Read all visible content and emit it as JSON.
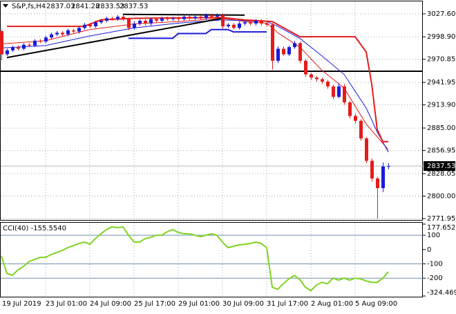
{
  "chart_data": [
    {
      "type": "candlestick",
      "symbol": "S&P,fs,H4",
      "categories": [
        "19 Jul 2019",
        null,
        null,
        null,
        null,
        null,
        null,
        null,
        "23 Jul 01:00",
        null,
        null,
        null,
        null,
        null,
        null,
        null,
        "24 Jul 09:00",
        null,
        null,
        null,
        null,
        null,
        null,
        null,
        "25 Jul 17:00",
        null,
        null,
        null,
        null,
        null,
        null,
        null,
        "29 Jul 01:00",
        null,
        null,
        null,
        null,
        null,
        null,
        null,
        "30 Jul 09:00",
        null,
        null,
        null,
        null,
        null,
        null,
        null,
        "31 Jul 17:00",
        null,
        null,
        null,
        null,
        null,
        null,
        null,
        "2 Aug 01:00",
        null,
        null,
        null,
        null,
        null,
        null,
        null,
        "5 Aug 09:00",
        null,
        null,
        null,
        null,
        null,
        null
      ],
      "open": [
        3006,
        2977,
        2982,
        2986,
        2984,
        2989,
        2988,
        2994,
        2993,
        2998,
        3002,
        3004,
        3002,
        3007,
        3005.5,
        3010,
        3014,
        3012,
        3017,
        3019,
        3022,
        3021,
        3024,
        3021,
        3010,
        3015.5,
        3019,
        3015.5,
        3021,
        3019,
        3022,
        3021,
        3022,
        3021,
        3024,
        3022,
        3024,
        3022,
        3026,
        3024,
        3026,
        3012,
        3014,
        3010,
        3015.5,
        3017,
        3015.5,
        3019,
        3015.5,
        3014,
        2969,
        2984,
        2977,
        2986,
        2991,
        2969,
        2952,
        2948,
        2946,
        2943,
        2937,
        2924,
        2937,
        2917,
        2900,
        2894,
        2872,
        2844,
        2822,
        2810,
        2837.03
      ],
      "high": [
        3008,
        2984,
        2988,
        2988,
        2991,
        2991,
        2996,
        2996,
        3000,
        3004,
        3006,
        3006,
        3009,
        3009,
        3012,
        3016,
        3016,
        3019,
        3021,
        3024,
        3024,
        3026,
        3026,
        3023,
        3018,
        3021,
        3021,
        3023,
        3023,
        3024,
        3024,
        3024,
        3024,
        3026,
        3026,
        3026,
        3026,
        3028,
        3028,
        3028,
        3028,
        3016,
        3016,
        3018,
        3019,
        3019,
        3021,
        3021,
        3018,
        3016,
        2987,
        2987,
        2988,
        2994,
        2993,
        2971,
        2954,
        2950,
        2948,
        2945,
        2939,
        2941,
        2940,
        2919,
        2903,
        2896,
        2874,
        2847,
        2824,
        2842,
        2841.28
      ],
      "low": [
        2970,
        2975,
        2980,
        2982,
        2982,
        2986,
        2986,
        2991,
        2991,
        2996,
        3000,
        3000,
        3000,
        3003,
        3003,
        3008,
        3010,
        3010,
        3015,
        3017,
        3019,
        3019,
        3019,
        3007,
        3008,
        3013,
        3013,
        3013,
        3017,
        3017,
        3019,
        3019,
        3019,
        3019,
        3020,
        3020,
        3020,
        3020,
        3022,
        3022,
        3009,
        3010,
        3008,
        3008,
        3013,
        3013,
        3013,
        3013,
        3012,
        2958,
        2966,
        2975,
        2975,
        2984,
        2966,
        2949,
        2945,
        2943,
        2940,
        2934,
        2921,
        2922,
        2914,
        2897,
        2891,
        2869,
        2841,
        2818,
        2772,
        2805,
        2833.53
      ],
      "close": [
        2977,
        2982,
        2986,
        2984,
        2989,
        2988,
        2994,
        2993,
        2998,
        3002,
        3004,
        3002,
        3007,
        3005.5,
        3010,
        3014,
        3012,
        3017,
        3019,
        3022,
        3021,
        3024,
        3021,
        3010,
        3015.5,
        3019,
        3015.5,
        3021,
        3019,
        3022,
        3021,
        3022,
        3021,
        3024,
        3022,
        3024,
        3022,
        3026,
        3024,
        3026,
        3012,
        3014,
        3010,
        3015.5,
        3017,
        3015.5,
        3019,
        3015.5,
        3014,
        2969,
        2984,
        2977,
        2986,
        2991,
        2969,
        2952,
        2948,
        2946,
        2943,
        2937,
        2924,
        2937,
        2917,
        2900,
        2894,
        2872,
        2844,
        2822,
        2810,
        2837,
        2837.53
      ],
      "up_color": "#1a1adc",
      "down_color": "#e41c1c",
      "overlays": [
        {
          "x": [
            0,
            8,
            16,
            24,
            32,
            40,
            44,
            48,
            50,
            54,
            58,
            62,
            66,
            70
          ],
          "values": [
            2990,
            2994,
            3008,
            3015,
            3018,
            3022,
            3018,
            3016,
            3004,
            2986,
            2957,
            2935,
            2890,
            2858
          ],
          "color": "#e41c1c",
          "width": 1
        },
        {
          "x": [
            0,
            8,
            16,
            24,
            32,
            40,
            48,
            50,
            54,
            58,
            62,
            66,
            68,
            70
          ],
          "values": [
            2985,
            2988,
            3000,
            3010,
            3016,
            3020,
            3018,
            3012,
            2997,
            2975,
            2952,
            2910,
            2880,
            2855
          ],
          "color": "#1a1adc",
          "width": 1
        },
        {
          "x": [
            1,
            15,
            18,
            24,
            40,
            44,
            49,
            54,
            64,
            66,
            67,
            68,
            69,
            70
          ],
          "values": [
            3012,
            3012,
            3020,
            3022,
            3023,
            3020,
            3018,
            2999,
            2999,
            2980,
            2940,
            2883,
            2868,
            2868
          ],
          "color": "#e41c1c",
          "width": 2
        },
        {
          "x": [
            23,
            31,
            32,
            37,
            38,
            41,
            42,
            48
          ],
          "values": [
            2997,
            2997,
            3003,
            3003,
            3008,
            3008,
            3005,
            3005
          ],
          "color": "#1a1adc",
          "width": 2
        },
        {
          "x": [
            1,
            40
          ],
          "values": [
            2973,
            3022
          ],
          "color": "#000000",
          "width": 2
        },
        {
          "x": [
            22,
            44
          ],
          "values": [
            3027,
            3026
          ],
          "color": "#000000",
          "width": 2
        }
      ],
      "hline": 2955.9,
      "hline_color": "#000000",
      "ylim": [
        2770.22,
        3034.51
      ],
      "yticks": [
        {
          "value": 3027.6,
          "label": "3027.60"
        },
        {
          "value": 2998.9,
          "label": "2998.90"
        },
        2970.85,
        2941.95,
        {
          "value": 2913.9,
          "label": "2913.90"
        },
        {
          "value": 2885,
          "label": "2885.00"
        },
        2856.95,
        2828.05,
        {
          "value": 2800,
          "label": "2800.00"
        },
        2771.95
      ],
      "grid": true
    },
    {
      "type": "line",
      "label": "CCI(40) -155.5540",
      "values": [
        -45,
        -166,
        -180,
        -142,
        -118,
        -84,
        -69,
        -55,
        -55,
        -35,
        -21,
        -6,
        13,
        27,
        42,
        52,
        37,
        76,
        110,
        139,
        158,
        153,
        158,
        100,
        52,
        52,
        76,
        85,
        100,
        100,
        124,
        139,
        119,
        110,
        110,
        100,
        90,
        100,
        110,
        100,
        52,
        13,
        23,
        32,
        37,
        42,
        52,
        42,
        13,
        -263,
        -277,
        -239,
        -205,
        -181,
        -210,
        -263,
        -287,
        -248,
        -229,
        -239,
        -200,
        -214,
        -200,
        -214,
        -200,
        -205,
        -219,
        -229,
        -229,
        -200,
        -155.554
      ],
      "color": "#7ed321",
      "levels": [
        100,
        -100,
        -200
      ],
      "level_color": "#6f8fb0",
      "ylim": [
        -324.4695,
        177.6525
      ],
      "yticks": [
        177.6525,
        100,
        0,
        -100,
        -200,
        -324.4695
      ]
    }
  ]
}
